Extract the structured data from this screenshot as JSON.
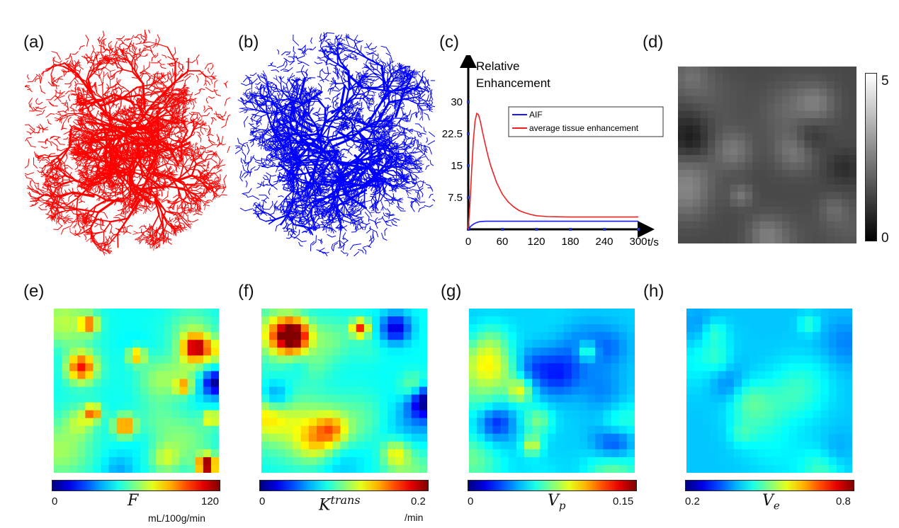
{
  "panel_labels": {
    "a": "(a)",
    "b": "(b)",
    "c": "(c)",
    "d": "(d)",
    "e": "(e)",
    "f": "(f)",
    "g": "(g)",
    "h": "(h)"
  },
  "colors": {
    "vessel_red": "#ff0000",
    "vessel_blue": "#0000ff",
    "aif": "#1a1aff",
    "tissue": "#ee2222"
  },
  "chart_data": {
    "type": "line",
    "title": "",
    "ylabel_line1": "Relative",
    "ylabel_line2": "Enhancement",
    "xlabel": "t/s",
    "xlim": [
      0,
      310
    ],
    "ylim": [
      0,
      37
    ],
    "x_ticks": [
      "0",
      "60",
      "120",
      "180",
      "240",
      "300"
    ],
    "y_ticks": [
      "7.5",
      "15",
      "22.5",
      "30"
    ],
    "series": [
      {
        "name": "AIF",
        "color": "#1a1aff",
        "x": [
          0,
          5,
          10,
          15,
          20,
          30,
          40,
          60,
          120,
          180,
          240,
          300
        ],
        "y": [
          0,
          0.8,
          1.3,
          1.6,
          1.8,
          1.9,
          1.9,
          1.9,
          1.9,
          1.9,
          1.9,
          1.9
        ]
      },
      {
        "name": "average tissue enhancement",
        "color": "#ee2222",
        "x": [
          0,
          3,
          6,
          9,
          12,
          15,
          18,
          21,
          25,
          30,
          35,
          40,
          50,
          60,
          70,
          80,
          90,
          100,
          110,
          120,
          140,
          160,
          180,
          200,
          240,
          300
        ],
        "y": [
          0,
          6,
          14,
          21,
          25.5,
          27.3,
          27,
          25.6,
          23,
          20,
          17.2,
          14.8,
          11,
          8.3,
          6.5,
          5.3,
          4.4,
          3.9,
          3.5,
          3.2,
          3.0,
          2.95,
          2.9,
          2.9,
          2.9,
          2.9
        ]
      }
    ]
  },
  "colorbars": {
    "d": {
      "max": "5",
      "min": "0"
    },
    "e": {
      "min": "0",
      "max": "120",
      "symbol": "F",
      "unit": "mL/100g/min"
    },
    "f": {
      "min": "0",
      "max": "0.2",
      "symbol": "K",
      "superscript": "trans",
      "unit": "/min"
    },
    "g": {
      "min": "0",
      "max": "0.15",
      "symbol": "V",
      "subscript": "p"
    },
    "h": {
      "min": "0.2",
      "max": "0.8",
      "symbol": "V",
      "subscript": "e"
    }
  }
}
